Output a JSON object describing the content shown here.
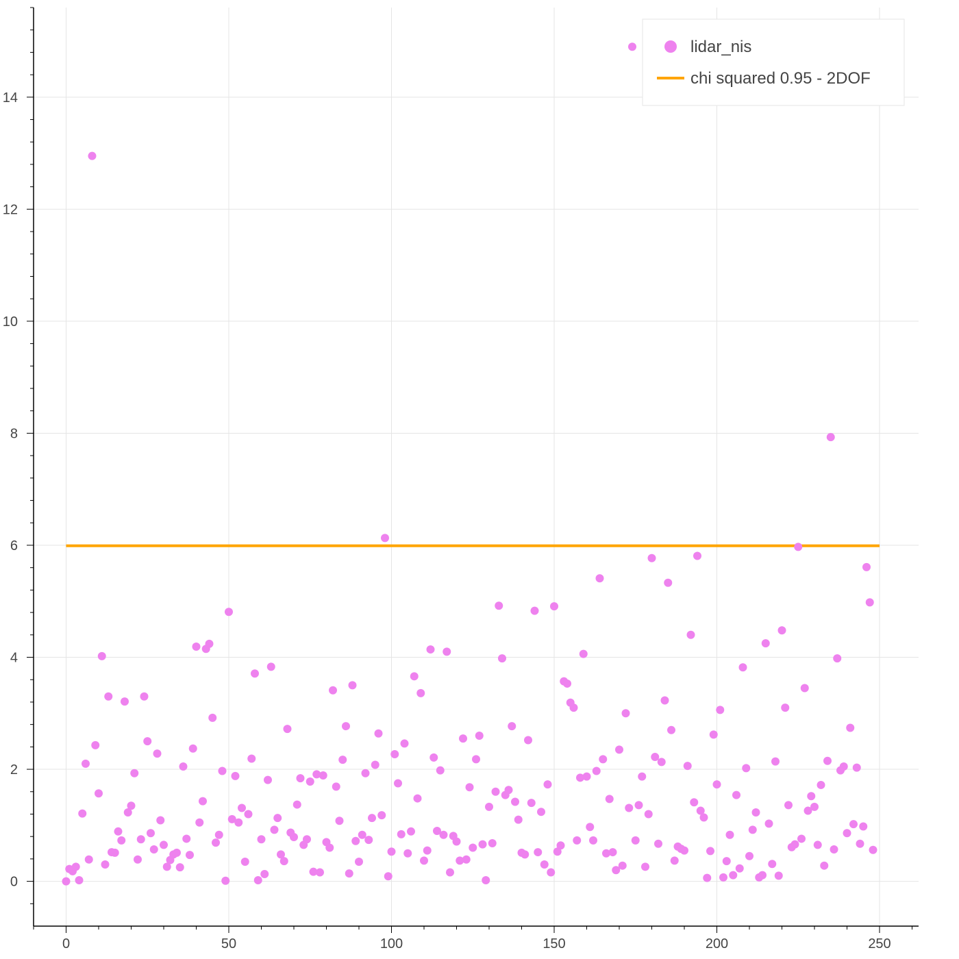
{
  "chart_data": {
    "type": "scatter",
    "xlim": [
      -10,
      262
    ],
    "ylim": [
      -0.8,
      15.6
    ],
    "x_ticks": [
      0,
      50,
      100,
      150,
      200,
      250
    ],
    "y_ticks": [
      0,
      2,
      4,
      6,
      8,
      10,
      12,
      14
    ],
    "grid": true,
    "legend_position": "top-right",
    "series": [
      {
        "name": "lidar_nis",
        "kind": "scatter",
        "color": "#ee82ee",
        "y": [
          0.0,
          0.22,
          0.18,
          0.26,
          0.02,
          1.21,
          2.1,
          0.39,
          12.95,
          2.43,
          1.57,
          4.02,
          0.3,
          3.3,
          0.52,
          0.51,
          0.89,
          0.73,
          3.21,
          1.23,
          1.35,
          1.93,
          0.39,
          0.75,
          3.3,
          2.5,
          0.86,
          0.57,
          2.28,
          1.09,
          0.65,
          0.26,
          0.38,
          0.48,
          0.51,
          0.25,
          2.05,
          0.76,
          0.47,
          2.37,
          4.19,
          1.05,
          1.43,
          4.15,
          4.24,
          2.92,
          0.69,
          0.83,
          1.97,
          0.01,
          4.81,
          1.11,
          1.88,
          1.05,
          1.31,
          0.35,
          1.2,
          2.19,
          3.71,
          0.02,
          0.75,
          0.13,
          1.81,
          3.83,
          0.92,
          1.13,
          0.48,
          0.36,
          2.72,
          0.87,
          0.79,
          1.37,
          1.84,
          0.65,
          0.75,
          1.78,
          0.17,
          1.91,
          0.16,
          1.89,
          0.7,
          0.6,
          3.41,
          1.69,
          1.08,
          2.17,
          2.77,
          0.14,
          3.5,
          0.72,
          0.35,
          0.83,
          1.93,
          0.74,
          1.13,
          2.08,
          2.64,
          1.18,
          6.13,
          0.09,
          0.53,
          2.27,
          1.75,
          0.84,
          2.46,
          0.5,
          0.89,
          3.66,
          1.48,
          3.36,
          0.37,
          0.55,
          4.14,
          2.21,
          0.9,
          1.98,
          0.83,
          4.1,
          0.16,
          0.81,
          0.71,
          0.37,
          2.55,
          0.39,
          1.68,
          0.6,
          2.18,
          2.6,
          0.66,
          0.02,
          1.33,
          0.68,
          1.6,
          4.92,
          3.98,
          1.54,
          1.63,
          2.77,
          1.42,
          1.1,
          0.51,
          0.48,
          2.52,
          1.4,
          4.83,
          0.52,
          1.24,
          0.3,
          1.73,
          0.16,
          4.91,
          0.53,
          0.64,
          3.57,
          3.53,
          3.19,
          3.1,
          0.73,
          1.85,
          4.06,
          1.87,
          0.97,
          0.73,
          1.97,
          5.41,
          2.18,
          0.5,
          1.47,
          0.52,
          0.2,
          2.35,
          0.28,
          3.0,
          1.31,
          14.9,
          0.73,
          1.36,
          1.87,
          0.26,
          1.2,
          5.77,
          2.22,
          0.67,
          2.13,
          3.23,
          5.33,
          2.7,
          0.37,
          0.62,
          0.58,
          0.55,
          2.06,
          4.4,
          1.41,
          5.81,
          1.26,
          1.14,
          0.06,
          0.54,
          2.62,
          1.73,
          3.06,
          0.07,
          0.36,
          0.83,
          0.11,
          1.54,
          0.23,
          3.82,
          2.02,
          0.45,
          0.92,
          1.23,
          0.07,
          0.11,
          4.25,
          1.03,
          0.31,
          2.14,
          0.1,
          4.48,
          3.1,
          1.36,
          0.61,
          0.66,
          5.97,
          0.76,
          3.45,
          1.26,
          1.52,
          1.33,
          0.65,
          1.72,
          0.28,
          2.15,
          7.93,
          0.57,
          3.98,
          1.98,
          2.05,
          0.86,
          2.74,
          1.02,
          2.03,
          0.67,
          0.98,
          5.61,
          4.98,
          0.56
        ]
      },
      {
        "name": "chi squared 0.95 - 2DOF",
        "kind": "line",
        "color": "#ffa500",
        "x": [
          0,
          250
        ],
        "y": [
          5.99,
          5.99
        ]
      }
    ]
  }
}
